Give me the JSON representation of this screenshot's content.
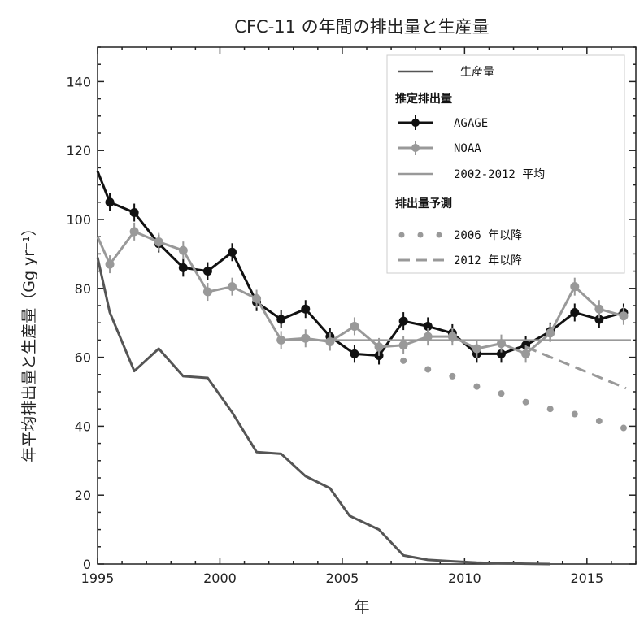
{
  "chart_data": {
    "type": "line",
    "title": "CFC-11 の年間の排出量と生産量",
    "xlabel": "年",
    "ylabel": "年平均排出量と生産量（Gg yr⁻¹）",
    "xlim": [
      1995,
      2017
    ],
    "ylim": [
      0,
      150
    ],
    "xticks": [
      1995,
      2000,
      2005,
      2010,
      2015
    ],
    "yticks": [
      0,
      20,
      40,
      60,
      80,
      100,
      120,
      140
    ],
    "grid": false,
    "legend_position": "top-right",
    "series": [
      {
        "name": "生産量",
        "style": "solid",
        "color": "#555555",
        "x": [
          1995,
          1995.5,
          1996.5,
          1997.5,
          1998.5,
          1999.5,
          2000.5,
          2001.5,
          2002.5,
          2003.5,
          2004.5,
          2005.3,
          2006.5,
          2007.5,
          2008.5,
          2009.5,
          2010.5,
          2011.5,
          2012.5,
          2013.5
        ],
        "y": [
          89,
          73,
          56,
          62.5,
          54.5,
          54,
          44,
          32.5,
          32,
          25.5,
          22,
          14,
          10,
          2.5,
          1.2,
          0.8,
          0.4,
          0.2,
          0.1,
          0
        ]
      },
      {
        "name": "AGAGE",
        "style": "solid-errorbar",
        "color": "#111111",
        "x": [
          1995,
          1995.5,
          1996.5,
          1997.5,
          1998.5,
          1999.5,
          2000.5,
          2001.5,
          2002.5,
          2003.5,
          2004.5,
          2005.5,
          2006.5,
          2007.5,
          2008.5,
          2009.5,
          2010.5,
          2011.5,
          2012.5,
          2013.5,
          2014.5,
          2015.5,
          2016.5
        ],
        "y": [
          114,
          105,
          102,
          93,
          86,
          85,
          90.5,
          76,
          71,
          74,
          66,
          61,
          60.5,
          70.5,
          69,
          67,
          61,
          61,
          63.5,
          67.5,
          73,
          71,
          73
        ]
      },
      {
        "name": "NOAA",
        "style": "solid-errorbar",
        "color": "#999999",
        "x": [
          1995,
          1995.5,
          1996.5,
          1997.5,
          1998.5,
          1999.5,
          2000.5,
          2001.5,
          2002.5,
          2003.5,
          2004.5,
          2005.5,
          2006.5,
          2007.5,
          2008.5,
          2009.5,
          2010.5,
          2011.5,
          2012.5,
          2013.5,
          2014.5,
          2015.5,
          2016.5
        ],
        "y": [
          95,
          87,
          96.5,
          93.5,
          91,
          79,
          80.5,
          77,
          65,
          65.5,
          64.5,
          69,
          63,
          63.5,
          66,
          66,
          62.5,
          64,
          61,
          67,
          80.5,
          74,
          72
        ]
      },
      {
        "name": "2002-2012 平均",
        "style": "solid",
        "color": "#999999",
        "x": [
          2002.5,
          2016.8
        ],
        "y": [
          65,
          65
        ]
      },
      {
        "name": "2006 年以降",
        "style": "dotted",
        "color": "#999999",
        "x": [
          2007.5,
          2008.5,
          2009.5,
          2010.5,
          2011.5,
          2012.5,
          2013.5,
          2014.5,
          2015.5,
          2016.5
        ],
        "y": [
          59,
          56.5,
          54.5,
          51.5,
          49.5,
          47,
          45,
          43.5,
          41.5,
          39.5
        ]
      },
      {
        "name": "2012 年以降",
        "style": "dashed",
        "color": "#999999",
        "x": [
          2012.5,
          2016.6
        ],
        "y": [
          63,
          51
        ]
      }
    ],
    "legend": {
      "production": "生産量",
      "estimated_heading": "推定排出量",
      "agage": "AGAGE",
      "noaa": "NOAA",
      "mean": "2002-2012 平均",
      "projection_heading": "排出量予測",
      "after2006": "2006 年以降",
      "after2012": "2012 年以降"
    }
  }
}
